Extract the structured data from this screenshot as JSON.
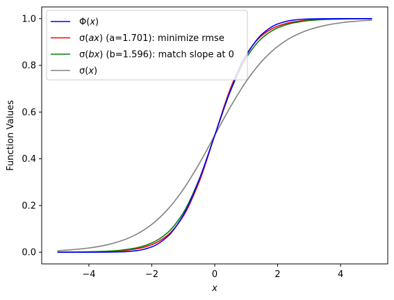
{
  "chart_data": {
    "type": "line",
    "title": "",
    "xlabel": "x",
    "ylabel": "Function Values",
    "xlim": [
      -5.5,
      5.5
    ],
    "ylim": [
      -0.05,
      1.05
    ],
    "xticks": [
      -4,
      -2,
      0,
      2,
      4
    ],
    "xtick_labels": [
      "−4",
      "−2",
      "0",
      "2",
      "4"
    ],
    "yticks": [
      0.0,
      0.2,
      0.4,
      0.6,
      0.8,
      1.0
    ],
    "ytick_labels": [
      "0.0",
      "0.2",
      "0.4",
      "0.6",
      "0.8",
      "1.0"
    ],
    "grid": false,
    "legend_position": "upper-left",
    "x": [
      -5,
      -4.5,
      -4,
      -3.5,
      -3,
      -2.5,
      -2,
      -1.5,
      -1,
      -0.5,
      0,
      0.5,
      1,
      1.5,
      2,
      2.5,
      3,
      3.5,
      4,
      4.5,
      5
    ],
    "series": [
      {
        "name": "Φ(x)",
        "name_parts": [
          {
            "t": "Φ(",
            "i": false
          },
          {
            "t": "x",
            "i": true
          },
          {
            "t": ")",
            "i": false
          }
        ],
        "color": "#0000ff",
        "values": [
          0.0,
          0.0,
          0.0,
          0.0002,
          0.0013,
          0.0062,
          0.0228,
          0.0668,
          0.1587,
          0.3085,
          0.5,
          0.6915,
          0.8413,
          0.9332,
          0.9772,
          0.9938,
          0.9987,
          0.9998,
          1.0,
          1.0,
          1.0
        ]
      },
      {
        "name": "σ(ax) (a=1.701): minimize rmse",
        "name_parts": [
          {
            "t": "σ(",
            "i": false
          },
          {
            "t": "ax",
            "i": true
          },
          {
            "t": ") (a=1.701): minimize rmse",
            "i": false
          }
        ],
        "color": "#ff0000",
        "values": [
          0.0002,
          0.0005,
          0.0011,
          0.0026,
          0.006,
          0.014,
          0.0323,
          0.0723,
          0.1543,
          0.2993,
          0.5,
          0.7007,
          0.8457,
          0.9277,
          0.9677,
          0.986,
          0.994,
          0.9974,
          0.9989,
          0.9995,
          0.9998
        ]
      },
      {
        "name": "σ(bx) (b=1.596): match slope at 0",
        "name_parts": [
          {
            "t": "σ(",
            "i": false
          },
          {
            "t": "bx",
            "i": true
          },
          {
            "t": ") (b=1.596): match slope at 0",
            "i": false
          }
        ],
        "color": "#008000",
        "values": [
          0.0003,
          0.0008,
          0.0017,
          0.0037,
          0.0082,
          0.0181,
          0.0395,
          0.0836,
          0.1685,
          0.3103,
          0.5,
          0.6897,
          0.8315,
          0.9164,
          0.9605,
          0.9819,
          0.9918,
          0.9963,
          0.9983,
          0.9992,
          0.9997
        ]
      },
      {
        "name": "σ(x)",
        "name_parts": [
          {
            "t": "σ(",
            "i": false
          },
          {
            "t": "x",
            "i": true
          },
          {
            "t": ")",
            "i": false
          }
        ],
        "color": "#808080",
        "values": [
          0.0067,
          0.011,
          0.018,
          0.0293,
          0.0474,
          0.0759,
          0.1192,
          0.1824,
          0.2689,
          0.3775,
          0.5,
          0.6225,
          0.7311,
          0.8176,
          0.8808,
          0.9241,
          0.9526,
          0.9707,
          0.982,
          0.989,
          0.9933
        ]
      }
    ]
  }
}
